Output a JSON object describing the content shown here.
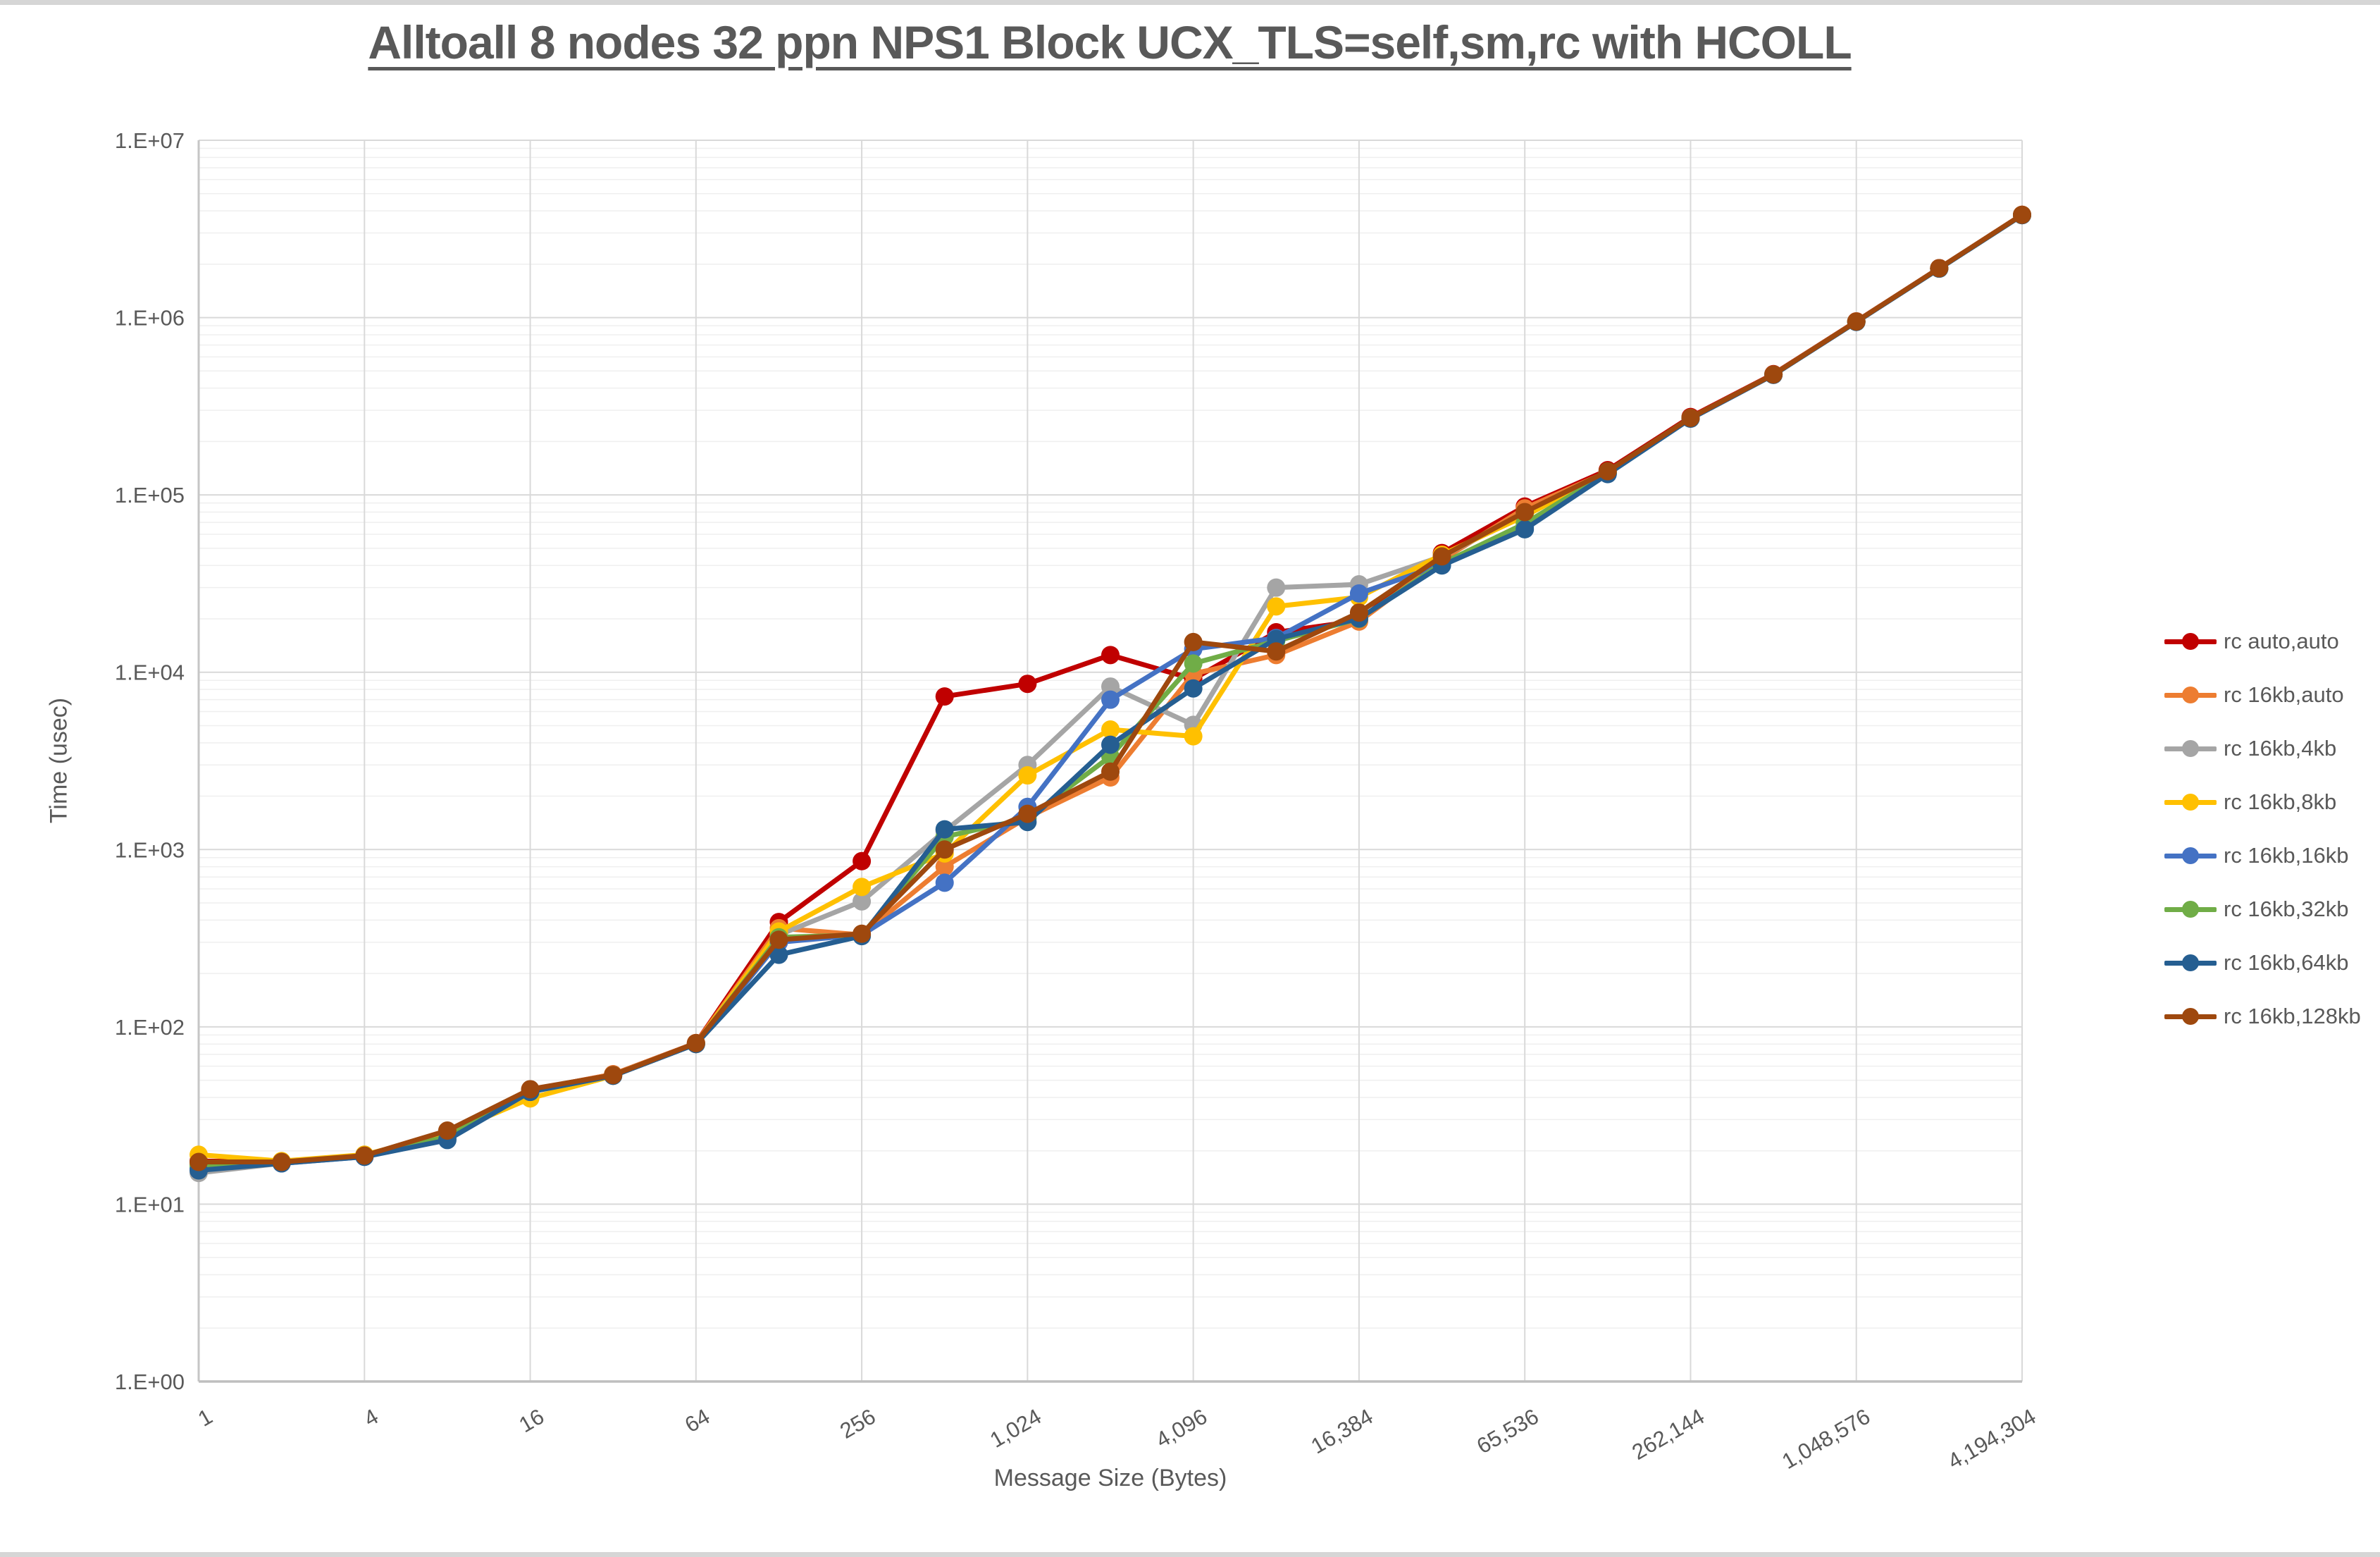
{
  "chart_data": {
    "type": "line",
    "title": "Alltoall 8 nodes 32 ppn NPS1 Block UCX_TLS=self,sm,rc with HCOLL",
    "xlabel": "Message Size (Bytes)",
    "ylabel": "Time (usec)",
    "x_scale": "log2",
    "y_scale": "log10",
    "xlim": [
      1,
      4194304
    ],
    "ylim": [
      1,
      10000000
    ],
    "grid": {
      "major_h": true,
      "minor_h": true,
      "major_v": true
    },
    "legend_position": "right",
    "x": [
      1,
      2,
      4,
      8,
      16,
      32,
      64,
      128,
      256,
      512,
      1024,
      2048,
      4096,
      8192,
      16384,
      32768,
      65536,
      131072,
      262144,
      524288,
      1048576,
      2097152,
      4194304
    ],
    "x_tick_sizes": [
      1,
      4,
      16,
      64,
      256,
      1024,
      4096,
      16384,
      65536,
      262144,
      1048576,
      4194304
    ],
    "x_tick_labels": [
      "1",
      "4",
      "16",
      "64",
      "256",
      "1,024",
      "4,096",
      "16,384",
      "65,536",
      "262,144",
      "1,048,576",
      "4,194,304"
    ],
    "y_tick_labels": [
      "1.E+00",
      "1.E+01",
      "1.E+02",
      "1.E+03",
      "1.E+04",
      "1.E+05",
      "1.E+06",
      "1.E+07"
    ],
    "series": [
      {
        "name": "rc auto,auto",
        "color": "#C00000",
        "values": [
          17.5,
          17.3,
          18.8,
          25,
          44,
          54,
          81,
          390,
          860,
          7300,
          8600,
          12500,
          9150,
          16800,
          19500,
          47000,
          86000,
          138000,
          275000,
          480000,
          952000,
          1900000,
          3800000
        ]
      },
      {
        "name": "rc 16kb,auto",
        "color": "#ED7D31",
        "values": [
          17,
          17.3,
          18.8,
          25,
          44,
          54,
          81,
          360,
          330,
          800,
          1520,
          2550,
          9800,
          12500,
          19300,
          43000,
          84000,
          135000,
          272000,
          478000,
          950000,
          1895000,
          3795000
        ]
      },
      {
        "name": "rc 16kb,4kb",
        "color": "#A5A5A5",
        "values": [
          15,
          17,
          19,
          24,
          43,
          53,
          80,
          330,
          510,
          1270,
          3000,
          8300,
          5050,
          30000,
          31300,
          45000,
          78000,
          134000,
          271000,
          477000,
          948000,
          1893000,
          3790000
        ]
      },
      {
        "name": "rc 16kb,8kb",
        "color": "#FFC000",
        "values": [
          19,
          17.5,
          19,
          25,
          39.5,
          53,
          80,
          345,
          615,
          950,
          2620,
          4750,
          4350,
          23500,
          26500,
          46000,
          76000,
          134000,
          271000,
          477000,
          948000,
          1892000,
          3790000
        ]
      },
      {
        "name": "rc 16kb,16kb",
        "color": "#4472C4",
        "values": [
          16,
          17,
          18.5,
          23.5,
          43,
          53,
          80,
          300,
          330,
          650,
          1740,
          7000,
          13500,
          15600,
          27800,
          40500,
          66000,
          132000,
          270000,
          476000,
          946000,
          1890000,
          3785000
        ]
      },
      {
        "name": "rc 16kb,32kb",
        "color": "#70AD47",
        "values": [
          16.5,
          17.2,
          18.6,
          24,
          43.5,
          53.5,
          80.5,
          320,
          330,
          1180,
          1500,
          3350,
          11200,
          15000,
          20000,
          41000,
          69000,
          133000,
          270000,
          476000,
          946000,
          1890000,
          3785000
        ]
      },
      {
        "name": "rc 16kb,64kb",
        "color": "#255E91",
        "values": [
          15.5,
          17,
          18.5,
          23,
          43,
          53,
          80,
          255,
          325,
          1300,
          1430,
          3900,
          8100,
          15400,
          20100,
          40000,
          64000,
          131000,
          269000,
          475000,
          945000,
          1888000,
          3780000
        ]
      },
      {
        "name": "rc 16kb,128kb",
        "color": "#9E480E",
        "values": [
          17.3,
          17.3,
          18.8,
          26,
          44.5,
          53.5,
          81,
          310,
          335,
          1000,
          1590,
          2750,
          14800,
          13100,
          21700,
          45000,
          80000,
          136000,
          272000,
          478000,
          950000,
          1900000,
          3800000
        ]
      }
    ]
  }
}
